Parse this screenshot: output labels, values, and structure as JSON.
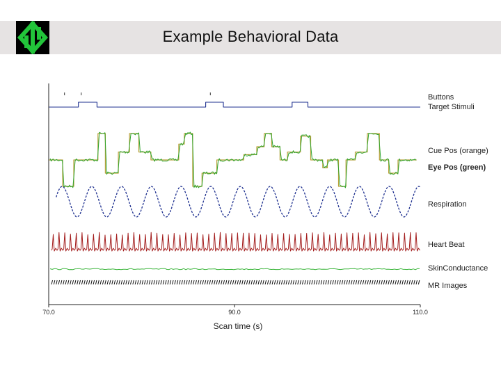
{
  "slide": {
    "title": "Example Behavioral Data",
    "logo_icon": "green-maze-logo-icon"
  },
  "colors": {
    "title_bar": "#e6e3e3",
    "logo_bg": "#000000",
    "logo_fg": "#22c43a",
    "buttons": "#1d2f8f",
    "cue": "#b8a13a",
    "eye": "#2fa52f",
    "respiration": "#1d2f8f",
    "heart": "#a31c1c",
    "skin": "#3cb53c",
    "mr": "#111111"
  },
  "chart_data": {
    "type": "line",
    "title": "",
    "xlabel": "Scan time (s)",
    "ylabel": "",
    "xlim": [
      70,
      110
    ],
    "x_ticks": [
      {
        "value": 70,
        "label": "70.0"
      },
      {
        "value": 90,
        "label": "90.0"
      },
      {
        "value": 110,
        "label": "110.0"
      }
    ],
    "grid": false,
    "legend": "right",
    "series": [
      {
        "name": "Buttons",
        "kind": "events",
        "events": [
          71.7,
          73.5,
          87.4
        ]
      },
      {
        "name": "Target Stimuli",
        "kind": "pulses",
        "pulses": [
          [
            73.2,
            75.2
          ],
          [
            86.9,
            88.8
          ],
          [
            96.2,
            97.9
          ]
        ]
      },
      {
        "name": "Cue Pos (orange)",
        "kind": "steps",
        "steps": [
          [
            70,
            0
          ],
          [
            71.5,
            -1
          ],
          [
            72.7,
            0
          ],
          [
            75.3,
            1
          ],
          [
            76.1,
            -0.5
          ],
          [
            77.5,
            0.3
          ],
          [
            78.7,
            1
          ],
          [
            79.7,
            0.3
          ],
          [
            81.0,
            0
          ],
          [
            84.0,
            0.6
          ],
          [
            84.6,
            1
          ],
          [
            85.5,
            -1
          ],
          [
            86.5,
            -0.5
          ],
          [
            88.1,
            0
          ],
          [
            91.0,
            0.2
          ],
          [
            92.4,
            0.5
          ],
          [
            93.2,
            1
          ],
          [
            94.0,
            0.5
          ],
          [
            94.9,
            0
          ],
          [
            95.7,
            0.3
          ],
          [
            96.8,
            0.3
          ],
          [
            97.1,
            0.9
          ],
          [
            98.2,
            0
          ],
          [
            99.5,
            -0.3
          ],
          [
            100.0,
            0
          ],
          [
            101.2,
            -1
          ],
          [
            102.0,
            0
          ],
          [
            103.0,
            0.3
          ],
          [
            104.3,
            1
          ],
          [
            105.6,
            0
          ],
          [
            106.6,
            -0.5
          ],
          [
            107.6,
            0
          ],
          [
            109.6,
            0
          ]
        ]
      },
      {
        "name": "Eye Pos (green)",
        "kind": "noisy-steps",
        "follows": "Cue Pos (orange)"
      },
      {
        "name": "Respiration",
        "kind": "sinusoid",
        "period_s": 3.2,
        "amplitude": 1
      },
      {
        "name": "Heart Beat",
        "kind": "spikes",
        "interval_s": 0.62
      },
      {
        "name": "SkinConductance",
        "kind": "flat-noise"
      },
      {
        "name": "MR Images",
        "kind": "events",
        "interval_s": 0.5
      }
    ]
  }
}
